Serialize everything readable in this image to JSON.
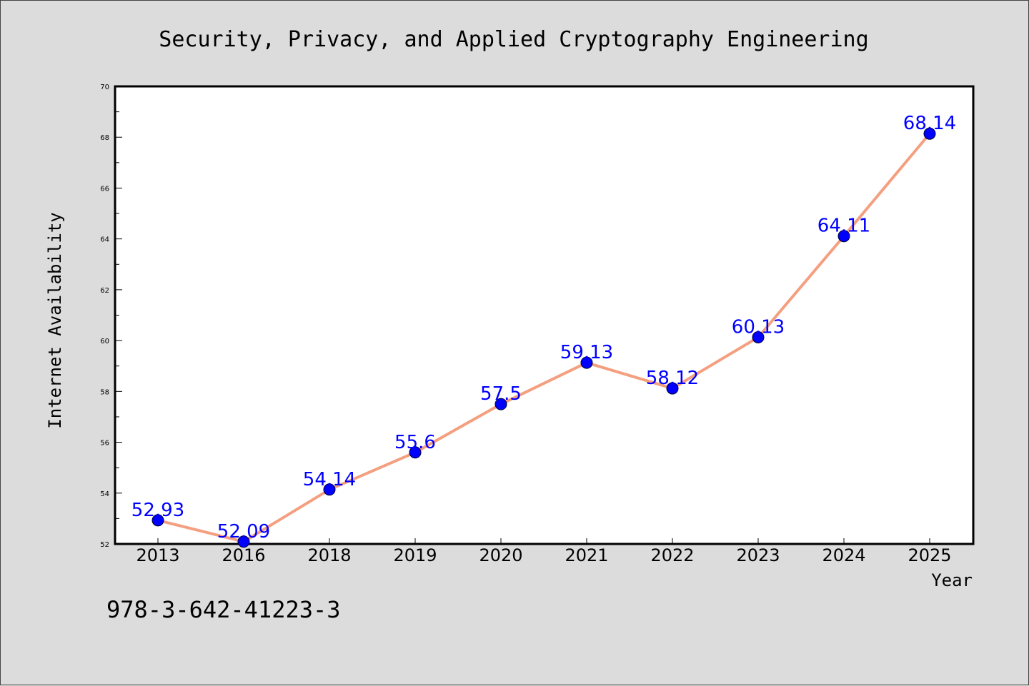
{
  "isbn": "978-3-642-41223-3",
  "chart_data": {
    "type": "line",
    "title": "Security, Privacy, and Applied Cryptography Engineering",
    "xlabel": "Year",
    "ylabel": "Internet Availability",
    "categories": [
      "2013",
      "2016",
      "2018",
      "2019",
      "2020",
      "2021",
      "2022",
      "2023",
      "2024",
      "2025"
    ],
    "series": [
      {
        "values": [
          52.93,
          52.09,
          54.14,
          55.6,
          57.5,
          59.13,
          58.12,
          60.13,
          64.11,
          68.14
        ]
      }
    ],
    "data_labels": [
      "52.93",
      "52.09",
      "54.14",
      "55.6",
      "57.5",
      "59.13",
      "58.12",
      "60.13",
      "64.11",
      "68.14"
    ],
    "ylim": [
      52,
      70
    ],
    "yticks": [
      "52",
      "54",
      "56",
      "58",
      "60",
      "62",
      "64",
      "66",
      "68",
      "70"
    ],
    "grid": false,
    "legend": "none",
    "colors": {
      "line": "#f4a080",
      "marker": "#0000ff",
      "label": "#0000ff"
    }
  }
}
